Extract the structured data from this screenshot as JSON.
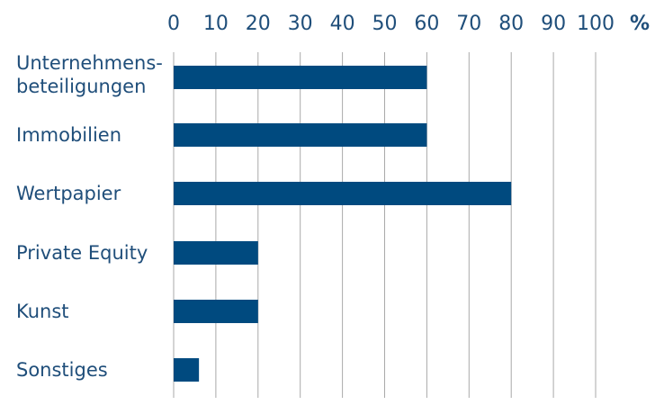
{
  "chart_data": {
    "type": "bar",
    "orientation": "horizontal",
    "unit": "%",
    "xlim": [
      0,
      100
    ],
    "xticks": [
      "0",
      "10",
      "20",
      "30",
      "40",
      "50",
      "60",
      "70",
      "80",
      "90",
      "100"
    ],
    "grid": true,
    "categories": [
      [
        "Unternehmens-",
        "beteiligungen"
      ],
      [
        "Immobilien"
      ],
      [
        "Wertpapier"
      ],
      [
        "Private Equity"
      ],
      [
        "Kunst"
      ],
      [
        "Sonstiges"
      ]
    ],
    "values": [
      60,
      60,
      80,
      20,
      20,
      6
    ],
    "bar_color": "#004a7f",
    "text_color": "#1f4e7a",
    "grid_color": "#a9a9a9"
  }
}
